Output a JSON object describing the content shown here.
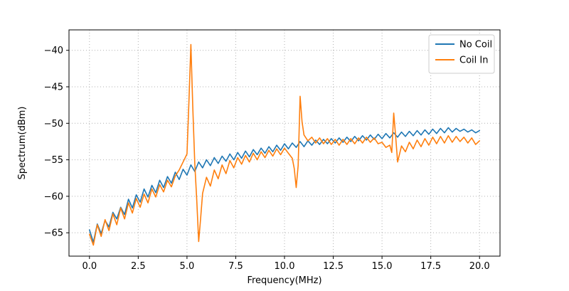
{
  "colors": {
    "no_coil": "#1f77b4",
    "coil_in": "#ff7f0e",
    "grid": "#b0b0b0",
    "axes_edge": "#000000",
    "legend_edge": "#cccccc",
    "background": "#ffffff"
  },
  "chart_data": {
    "type": "line",
    "title": "",
    "xlabel": "Frequency(MHz)",
    "ylabel": "Spectrum(dBm)",
    "xlim": [
      -1.05,
      21.05
    ],
    "ylim": [
      -68.2,
      -37.2
    ],
    "grid": true,
    "legend_position": "upper right",
    "xticks": {
      "values": [
        0.0,
        2.5,
        5.0,
        7.5,
        10.0,
        12.5,
        15.0,
        17.5,
        20.0
      ],
      "labels": [
        "0.0",
        "2.5",
        "5.0",
        "7.5",
        "10.0",
        "12.5",
        "15.0",
        "17.5",
        "20.0"
      ]
    },
    "yticks": {
      "values": [
        -65,
        -60,
        -55,
        -50,
        -45,
        -40
      ],
      "labels": [
        "−65",
        "−60",
        "−55",
        "−50",
        "−45",
        "−40"
      ]
    },
    "series": [
      {
        "name": "No Coil",
        "color_key": "no_coil",
        "x": [
          0.0,
          0.2,
          0.4,
          0.6,
          0.8,
          1.0,
          1.2,
          1.4,
          1.6,
          1.8,
          2.0,
          2.2,
          2.4,
          2.6,
          2.8,
          3.0,
          3.2,
          3.4,
          3.6,
          3.8,
          4.0,
          4.2,
          4.4,
          4.6,
          4.8,
          5.0,
          5.2,
          5.4,
          5.6,
          5.8,
          6.0,
          6.2,
          6.4,
          6.6,
          6.8,
          7.0,
          7.2,
          7.4,
          7.6,
          7.8,
          8.0,
          8.2,
          8.4,
          8.6,
          8.8,
          9.0,
          9.2,
          9.4,
          9.6,
          9.8,
          10.0,
          10.2,
          10.4,
          10.6,
          10.8,
          11.0,
          11.2,
          11.4,
          11.6,
          11.8,
          12.0,
          12.2,
          12.4,
          12.6,
          12.8,
          13.0,
          13.2,
          13.4,
          13.6,
          13.8,
          14.0,
          14.2,
          14.4,
          14.6,
          14.8,
          15.0,
          15.2,
          15.4,
          15.6,
          15.8,
          16.0,
          16.2,
          16.4,
          16.6,
          16.8,
          17.0,
          17.2,
          17.4,
          17.6,
          17.8,
          18.0,
          18.2,
          18.4,
          18.6,
          18.8,
          19.0,
          19.2,
          19.4,
          19.6,
          19.8,
          20.0
        ],
        "y": [
          -64.6,
          -66.3,
          -63.8,
          -65.1,
          -63.3,
          -64.2,
          -62.2,
          -63.1,
          -61.5,
          -62.5,
          -60.4,
          -61.6,
          -59.8,
          -60.8,
          -59.0,
          -60.1,
          -58.5,
          -59.5,
          -57.8,
          -58.8,
          -57.3,
          -58.2,
          -56.7,
          -57.7,
          -56.3,
          -57.1,
          -55.7,
          -56.6,
          -55.3,
          -56.1,
          -55.0,
          -55.8,
          -54.7,
          -55.5,
          -54.5,
          -55.2,
          -54.2,
          -55.0,
          -54.0,
          -54.8,
          -53.8,
          -54.6,
          -53.6,
          -54.3,
          -53.4,
          -54.1,
          -53.2,
          -53.9,
          -53.0,
          -53.7,
          -52.8,
          -53.5,
          -52.7,
          -53.3,
          -52.5,
          -53.2,
          -52.4,
          -53.0,
          -52.3,
          -52.9,
          -52.2,
          -52.8,
          -52.1,
          -52.7,
          -52.0,
          -52.6,
          -51.9,
          -52.5,
          -51.8,
          -52.4,
          -51.7,
          -52.3,
          -51.6,
          -52.2,
          -51.5,
          -52.1,
          -51.4,
          -52.0,
          -51.3,
          -51.9,
          -51.2,
          -51.8,
          -51.1,
          -51.7,
          -51.0,
          -51.6,
          -50.9,
          -51.5,
          -50.8,
          -51.4,
          -50.7,
          -51.3,
          -50.6,
          -51.2,
          -50.7,
          -51.1,
          -50.8,
          -51.2,
          -50.9,
          -51.3,
          -51.0
        ]
      },
      {
        "name": "Coil In",
        "color_key": "coil_in",
        "x": [
          0.0,
          0.2,
          0.4,
          0.6,
          0.8,
          1.0,
          1.2,
          1.4,
          1.6,
          1.8,
          2.0,
          2.2,
          2.4,
          2.6,
          2.8,
          3.0,
          3.2,
          3.4,
          3.6,
          3.8,
          4.0,
          4.2,
          4.4,
          4.6,
          4.8,
          5.0,
          5.1,
          5.2,
          5.3,
          5.4,
          5.5,
          5.6,
          5.7,
          5.8,
          6.0,
          6.2,
          6.4,
          6.6,
          6.8,
          7.0,
          7.2,
          7.4,
          7.6,
          7.8,
          8.0,
          8.2,
          8.4,
          8.6,
          8.8,
          9.0,
          9.2,
          9.4,
          9.6,
          9.8,
          10.0,
          10.2,
          10.4,
          10.5,
          10.6,
          10.7,
          10.8,
          10.9,
          11.0,
          11.2,
          11.4,
          11.6,
          11.8,
          12.0,
          12.2,
          12.4,
          12.6,
          12.8,
          13.0,
          13.2,
          13.4,
          13.6,
          13.8,
          14.0,
          14.2,
          14.4,
          14.6,
          14.8,
          15.0,
          15.2,
          15.4,
          15.5,
          15.6,
          15.7,
          15.8,
          16.0,
          16.2,
          16.4,
          16.6,
          16.8,
          17.0,
          17.2,
          17.4,
          17.6,
          17.8,
          18.0,
          18.2,
          18.4,
          18.6,
          18.8,
          19.0,
          19.2,
          19.4,
          19.6,
          19.8,
          20.0
        ],
        "y": [
          -65.2,
          -66.7,
          -63.9,
          -65.5,
          -63.2,
          -64.7,
          -62.4,
          -63.9,
          -61.6,
          -63.1,
          -60.9,
          -62.3,
          -60.3,
          -61.5,
          -59.7,
          -60.9,
          -59.0,
          -60.1,
          -58.4,
          -59.4,
          -57.8,
          -58.7,
          -57.2,
          -56.4,
          -55.3,
          -54.2,
          -47.0,
          -39.2,
          -48.0,
          -55.5,
          -60.5,
          -66.2,
          -63.0,
          -59.6,
          -57.4,
          -58.6,
          -56.4,
          -57.6,
          -55.7,
          -56.9,
          -55.1,
          -56.1,
          -54.7,
          -55.6,
          -54.4,
          -55.3,
          -54.1,
          -55.0,
          -53.9,
          -54.7,
          -53.7,
          -54.5,
          -53.5,
          -54.3,
          -53.4,
          -54.1,
          -54.8,
          -56.2,
          -58.8,
          -55.8,
          -46.3,
          -49.8,
          -51.6,
          -52.4,
          -51.9,
          -52.7,
          -52.0,
          -52.8,
          -52.1,
          -52.9,
          -52.2,
          -53.0,
          -52.2,
          -52.9,
          -52.1,
          -52.8,
          -52.0,
          -52.7,
          -51.9,
          -52.6,
          -52.0,
          -52.8,
          -52.6,
          -53.3,
          -53.0,
          -54.0,
          -48.6,
          -51.8,
          -55.3,
          -53.1,
          -53.9,
          -52.6,
          -53.5,
          -52.3,
          -53.2,
          -52.1,
          -53.0,
          -51.9,
          -52.8,
          -51.8,
          -52.7,
          -51.7,
          -52.6,
          -51.8,
          -52.5,
          -51.9,
          -52.7,
          -52.0,
          -52.9,
          -52.4
        ]
      }
    ]
  }
}
